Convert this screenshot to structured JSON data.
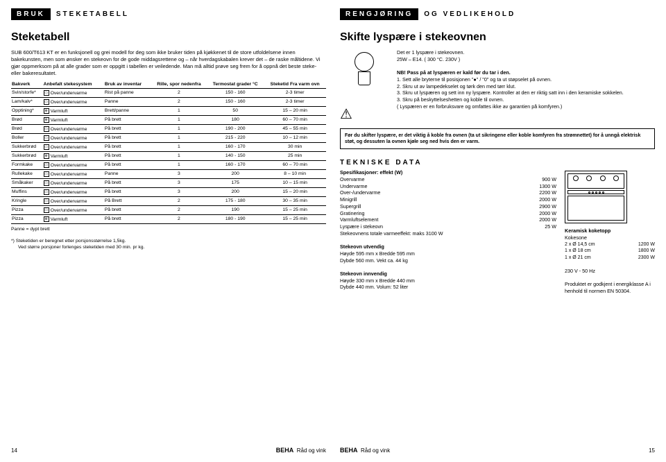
{
  "left": {
    "header1": "BRUK",
    "header2": "STEKETABELL",
    "title": "Steketabell",
    "intro": "SUB 600/T613 KT er en funksjonell og grei modell for deg som ikke bruker tiden på kjøkkenet til de store utfoldelsene innen bakekunsten, men som ønsker en stekeovn for de gode middagsrettene og – når hverdagskabalen krever det – de raske måltidene. Vi gjør oppmerksom på at alle grader som er oppgitt i tabellen er veiledende. Man må alltid prøve seg frem for å oppnå det beste steke- eller bakeresultatet.",
    "cols": [
      "Bakverk",
      "Anbefalt stekesystem",
      "Bruk av inventar",
      "Rille, spor nedenfra",
      "Termostat grader °C",
      "Steketid Fra varm ovn"
    ],
    "rows": [
      [
        "Svin/storfe*",
        "Over/undervarme",
        "Rist på panne",
        "2",
        "150 - 160",
        "2-3 timer"
      ],
      [
        "Lam/kalv*",
        "Over/undervarme",
        "Panne",
        "2",
        "150 - 160",
        "2-3 timer"
      ],
      [
        "Opptining*",
        "Varmluft",
        "Brett/panne",
        "1",
        "50",
        "15 – 20 min"
      ],
      [
        "Brød",
        "Varmluft",
        "På brett",
        "1",
        "180",
        "60 – 70 min"
      ],
      [
        "Brød",
        "Over/undervarme",
        "På brett",
        "1",
        "190 - 200",
        "45 – 55 min"
      ],
      [
        "Boller",
        "Over/undervarme",
        "På brett",
        "1",
        "215 - 220",
        "10 – 12 min"
      ],
      [
        "Sukkerbrød",
        "Over/undervarme",
        "På brett",
        "1",
        "160 - 170",
        "30 min"
      ],
      [
        "Sukkerbrød",
        "Varmluft",
        "På brett",
        "1",
        "140 - 150",
        "25 min"
      ],
      [
        "Formkake",
        "Over/undervarme",
        "På brett",
        "1",
        "160 - 170",
        "60 – 70 min"
      ],
      [
        "Rullekake",
        "Over/undervarme",
        "Panne",
        "3",
        "200",
        "8 – 10 min"
      ],
      [
        "Småkaker",
        "Over/undervarme",
        "På brett",
        "3",
        "175",
        "10 – 15 min"
      ],
      [
        "Muffins",
        "Over/undervarme",
        "På brett",
        "3",
        "200",
        "15 – 20 min"
      ],
      [
        "Kringle",
        "Over/undervarme",
        "På Brett",
        "2",
        "175 - 180",
        "30 – 35 min"
      ],
      [
        "Pizza",
        "Over/undervarme",
        "På brett",
        "2",
        "190",
        "15 – 25 min"
      ],
      [
        "Pizza",
        "Varmluft",
        "På brett",
        "2",
        "180 - 190",
        "15 – 25 min"
      ]
    ],
    "note1": "Panne = dypt brett",
    "note2": "*) Steketiden er beregnet etter porsjonsstørrelse 1,5kg.",
    "note3": "Ved større porsjoner forlenges steketiden med 30 min. pr kg.",
    "pagenum": "14",
    "brand": "BEHA",
    "footertxt": "Råd og vink"
  },
  "right": {
    "header1": "RENGJØRING",
    "header2": "OG VEDLIKEHOLD",
    "title": "Skifte lyspære i stekeovnen",
    "col1": {
      "p1": "Det er 1 lyspære i stekeovnen.",
      "p2": "25W – E14. ( 300 °C. 230V )",
      "p3": "NB! Pass på at lyspæren er kald før du tar i den.",
      "s1": "1. Sett alle bryterne til posisjonen \"●\" / \"0\" og ta ut støpselet på ovnen.",
      "s2": "2. Skru ut av lampedekselet og tørk den med tørr klut.",
      "s3": "3. Skru ut lyspæren og sett inn ny lyspære. Kontroller at den er riktig satt inn i den keramiske sokkelen.",
      "s4": "3. Skru på beskyttelseshetten og koble til ovnen.",
      "s5": "( Lyspæren er en forbruksvare og omfattes ikke av garantien på komfyren.)"
    },
    "warn": "Før du skifter lyspære, er det viktig å koble fra ovnen (ta ut sikringene eller koble komfyren fra strømnettet) for å unngå elektrisk støt, og dessuten la ovnen kjøle seg ned hvis den er varm.",
    "techtitle": "TEKNISKE DATA",
    "spec": {
      "title": "Spesifikasjoner: effekt (W)",
      "rows": [
        [
          "Overvarme",
          "900 W"
        ],
        [
          "Undervarme",
          "1300 W"
        ],
        [
          "Over-/undervarme",
          "2200 W"
        ],
        [
          "Minigrill",
          "2000 W"
        ],
        [
          "Supergrill",
          "2900 W"
        ],
        [
          "Gratinering",
          "2000 W"
        ],
        [
          "Varmluftselement",
          "2000 W"
        ],
        [
          "Lyspære i stekeovn",
          "25 W"
        ]
      ],
      "total": "Stekeovnens totale varmeeffekt: maks 3100 W"
    },
    "utv": {
      "t": "Stekeovn utvendig",
      "l1": "Høyde 595 mm x Bredde 595 mm",
      "l2": "Dybde 560 mm. Vekt ca. 44 kg"
    },
    "inv": {
      "t": "Stekeovn innvendig",
      "l1": "Høyde 330 mm x Bredde 440 mm",
      "l2": "Dybde 440 mm. Volum: 52 liter"
    },
    "ktop": {
      "t": "Keramisk koketopp",
      "sub": "Kokesone",
      "rows": [
        [
          "2 x Ø 14,5 cm",
          "1200 W"
        ],
        [
          "1 x Ø 18 cm",
          "1800 W"
        ],
        [
          "1 x Ø 21 cm",
          "2300 W"
        ]
      ],
      "volt": "230 V - 50 Hz",
      "cert": "Produktet er godkjent i energiklasse A i henhold til normen EN 50304."
    },
    "pagenum": "15",
    "brand": "BEHA",
    "footertxt": "Råd og vink"
  }
}
